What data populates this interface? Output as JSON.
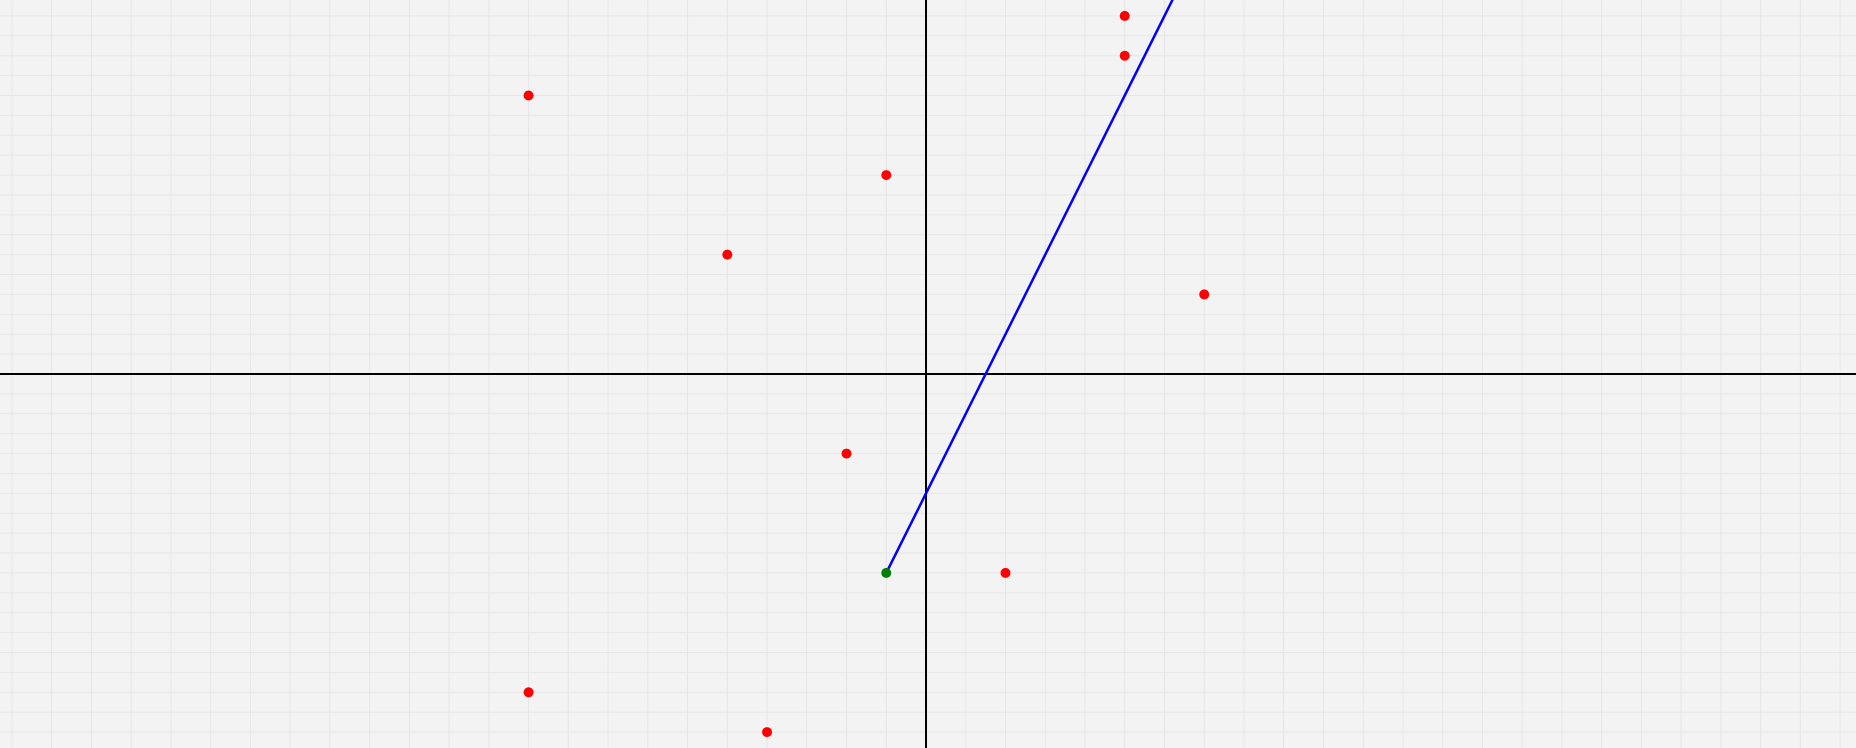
{
  "colors": {
    "background": "#f3f3f3",
    "grid": "#e6e6e6",
    "axis": "#000000",
    "point": "#ff0000",
    "start_point": "#008000",
    "line": "#0000ff"
  },
  "chart_data": {
    "type": "scatter",
    "title": "",
    "xlabel": "",
    "ylabel": "",
    "grid": true,
    "tick_labels": false,
    "xlim": [
      -23.3,
      23.4
    ],
    "ylim": [
      -9.4,
      9.4
    ],
    "points": [
      {
        "x": -10,
        "y": 7
      },
      {
        "x": -5,
        "y": 3
      },
      {
        "x": -1,
        "y": 5
      },
      {
        "x": 5,
        "y": 9
      },
      {
        "x": 5,
        "y": 8
      },
      {
        "x": 7,
        "y": 2
      },
      {
        "x": -2,
        "y": -2
      },
      {
        "x": 2,
        "y": -5
      },
      {
        "x": -10,
        "y": -8
      },
      {
        "x": -4,
        "y": -9
      }
    ],
    "start_point": {
      "x": -1,
      "y": -5
    },
    "line": {
      "x": [
        -1,
        6.25
      ],
      "y": [
        -5,
        9.5
      ]
    }
  }
}
